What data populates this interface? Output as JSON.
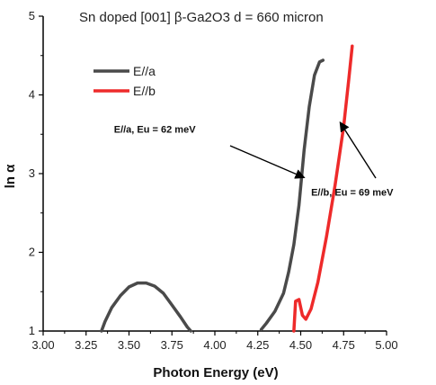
{
  "chart_data": {
    "type": "line",
    "title": "Sn doped [001] β-Ga2O3    d = 660 micron",
    "xlabel": "Photon Energy (eV)",
    "ylabel": "ln α",
    "xlim": [
      3.0,
      5.0
    ],
    "ylim": [
      1.0,
      5.0
    ],
    "x_ticks": [
      "3.00",
      "3.25",
      "3.50",
      "3.75",
      "4.00",
      "4.25",
      "4.50",
      "4.75",
      "5.00"
    ],
    "y_ticks": [
      "1",
      "2",
      "3",
      "4",
      "5"
    ],
    "grid": false,
    "legend_position": "top-left",
    "series": [
      {
        "name": "E//a",
        "color": "#4a4a4a",
        "segments": [
          [
            [
              3.34,
              1.0
            ],
            [
              3.36,
              1.12
            ],
            [
              3.4,
              1.3
            ],
            [
              3.45,
              1.45
            ],
            [
              3.5,
              1.56
            ],
            [
              3.55,
              1.61
            ],
            [
              3.6,
              1.61
            ],
            [
              3.65,
              1.57
            ],
            [
              3.7,
              1.48
            ],
            [
              3.75,
              1.33
            ],
            [
              3.8,
              1.18
            ],
            [
              3.84,
              1.05
            ],
            [
              3.86,
              1.0
            ]
          ],
          [
            [
              4.27,
              1.02
            ],
            [
              4.3,
              1.1
            ],
            [
              4.35,
              1.25
            ],
            [
              4.4,
              1.48
            ],
            [
              4.43,
              1.75
            ],
            [
              4.46,
              2.1
            ],
            [
              4.49,
              2.6
            ],
            [
              4.52,
              3.3
            ],
            [
              4.55,
              3.85
            ],
            [
              4.58,
              4.25
            ],
            [
              4.61,
              4.42
            ],
            [
              4.63,
              4.44
            ]
          ]
        ]
      },
      {
        "name": "E//b",
        "color": "#ee2a2a",
        "segments": [
          [
            [
              4.46,
              1.0
            ],
            [
              4.47,
              1.38
            ],
            [
              4.49,
              1.4
            ],
            [
              4.51,
              1.2
            ],
            [
              4.53,
              1.15
            ],
            [
              4.56,
              1.28
            ],
            [
              4.6,
              1.62
            ],
            [
              4.65,
              2.2
            ],
            [
              4.7,
              2.85
            ],
            [
              4.75,
              3.6
            ],
            [
              4.78,
              4.2
            ],
            [
              4.8,
              4.62
            ]
          ]
        ]
      }
    ],
    "annotations": [
      {
        "text": "E//a, Eu = 62 meV",
        "x": 3.65,
        "y": 3.52,
        "arrow_to": [
          4.52,
          2.95
        ]
      },
      {
        "text": "E//b, Eu = 69 meV",
        "x": 4.8,
        "y": 2.72,
        "arrow_to": [
          4.73,
          3.65
        ]
      }
    ]
  }
}
